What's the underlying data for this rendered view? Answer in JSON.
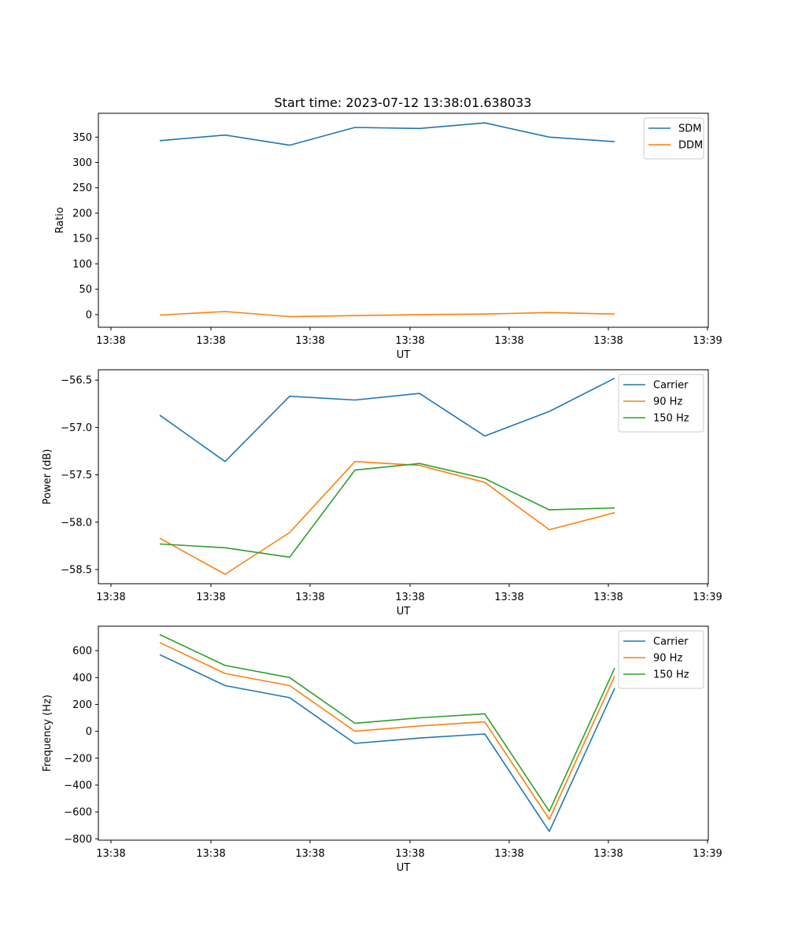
{
  "figure": {
    "title": "Start time: 2023-07-12 13:38:01.638033"
  },
  "chart_data": [
    {
      "type": "line",
      "title": "Start time: 2023-07-12 13:38:01.638033",
      "xlabel": "UT",
      "ylabel": "Ratio",
      "x_tick_labels": [
        "13:38",
        "13:38",
        "13:38",
        "13:38",
        "13:38",
        "13:38",
        "13:39"
      ],
      "y_ticks": [
        0,
        50,
        100,
        150,
        200,
        250,
        300,
        350
      ],
      "ylim": [
        -25,
        397
      ],
      "grid": false,
      "legend_position": "top-right",
      "series": [
        {
          "name": "SDM",
          "color": "#1f77b4",
          "values": [
            343,
            354,
            334,
            369,
            367,
            378,
            350,
            341
          ]
        },
        {
          "name": "DDM",
          "color": "#ff7f0e",
          "values": [
            -1,
            6,
            -4,
            -2,
            0,
            1,
            4,
            1
          ]
        }
      ]
    },
    {
      "type": "line",
      "title": "",
      "xlabel": "UT",
      "ylabel": "Power (dB)",
      "x_tick_labels": [
        "13:38",
        "13:38",
        "13:38",
        "13:38",
        "13:38",
        "13:38",
        "13:39"
      ],
      "y_ticks": [
        -58.5,
        -58.0,
        -57.5,
        -57.0,
        -56.5
      ],
      "y_tick_labels": [
        "−58.5",
        "−58.0",
        "−57.5",
        "−57.0",
        "−56.5"
      ],
      "ylim": [
        -58.65,
        -56.39
      ],
      "grid": false,
      "legend_position": "top-right",
      "series": [
        {
          "name": "Carrier",
          "color": "#1f77b4",
          "values": [
            -56.87,
            -57.36,
            -56.67,
            -56.71,
            -56.64,
            -57.09,
            -56.83,
            -56.48
          ]
        },
        {
          "name": "90 Hz",
          "color": "#ff7f0e",
          "values": [
            -58.17,
            -58.55,
            -58.11,
            -57.36,
            -57.4,
            -57.58,
            -58.08,
            -57.9
          ]
        },
        {
          "name": "150 Hz",
          "color": "#2ca02c",
          "values": [
            -58.23,
            -58.27,
            -58.37,
            -57.45,
            -57.38,
            -57.54,
            -57.87,
            -57.85
          ]
        }
      ]
    },
    {
      "type": "line",
      "title": "",
      "xlabel": "UT",
      "ylabel": "Frequency (Hz)",
      "x_tick_labels": [
        "13:38",
        "13:38",
        "13:38",
        "13:38",
        "13:38",
        "13:38",
        "13:39"
      ],
      "y_ticks": [
        -800,
        -600,
        -400,
        -200,
        0,
        200,
        400,
        600
      ],
      "y_tick_labels": [
        "−800",
        "−600",
        "−400",
        "−200",
        "0",
        "200",
        "400",
        "600"
      ],
      "ylim": [
        -810,
        782
      ],
      "grid": false,
      "legend_position": "top-right",
      "series": [
        {
          "name": "Carrier",
          "color": "#1f77b4",
          "values": [
            570,
            340,
            250,
            -90,
            -50,
            -20,
            -745,
            320
          ]
        },
        {
          "name": "90 Hz",
          "color": "#ff7f0e",
          "values": [
            660,
            430,
            340,
            0,
            40,
            70,
            -655,
            410
          ]
        },
        {
          "name": "150 Hz",
          "color": "#2ca02c",
          "values": [
            720,
            490,
            400,
            60,
            100,
            130,
            -595,
            470
          ]
        }
      ]
    }
  ]
}
